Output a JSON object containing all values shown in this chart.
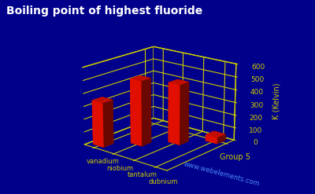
{
  "title": "Boiling point of highest fluoride",
  "title_color": "#ffffff",
  "title_fontsize": 10,
  "background_color": "#00008B",
  "elements": [
    "vanadium",
    "niobium",
    "tantalum",
    "dubnium"
  ],
  "values": [
    347,
    507,
    470,
    50
  ],
  "bar_color": "#ff1100",
  "ylabel": "K (Kelvin)",
  "group_label": "Group 5",
  "ylim": [
    0,
    600
  ],
  "yticks": [
    0,
    100,
    200,
    300,
    400,
    500,
    600
  ],
  "grid_color": "#cccc00",
  "tick_color": "#cccc00",
  "label_color": "#cccc00",
  "watermark": "www.webelements.com",
  "watermark_color": "#5599ff",
  "elev": 18,
  "azim": -50
}
